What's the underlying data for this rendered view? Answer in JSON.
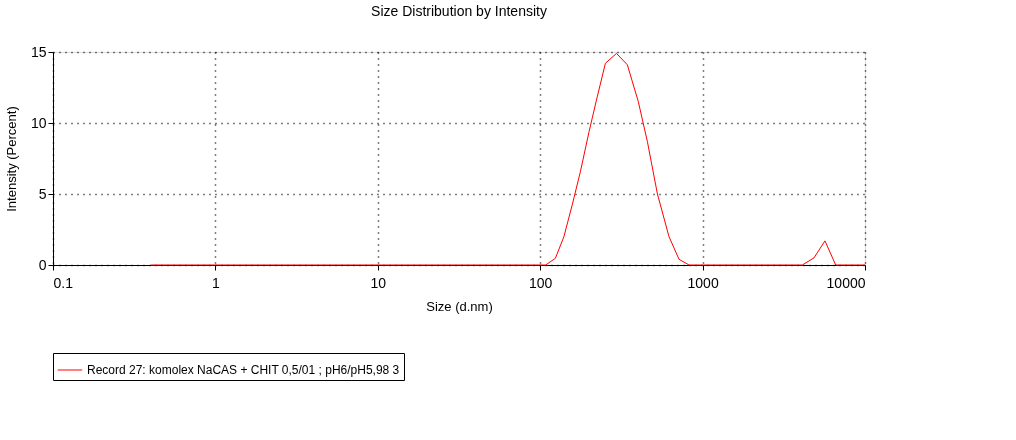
{
  "chart_data": {
    "type": "line",
    "title": "Size Distribution by Intensity",
    "xlabel": "Size (d.nm)",
    "ylabel": "Intensity (Percent)",
    "log": "x",
    "xlim": [
      0.1,
      10000
    ],
    "xticks": [
      0.1,
      1,
      10,
      100,
      1000,
      10000
    ],
    "ylim": [
      0,
      15
    ],
    "yticks": [
      0,
      5,
      10,
      15
    ],
    "grid": true,
    "legend": "bottom",
    "line_style": "solid",
    "marker": "none",
    "series": [
      {
        "name": "Record 27: komolex NaCAS + CHIT 0,5/01 ; pH6/pH5,98 3",
        "color": "#ff0000",
        "x": [
          0.4,
          108,
          124,
          140,
          158,
          177,
          200,
          224,
          252,
          295,
          344,
          402,
          457,
          527,
          621,
          716,
          825,
          4110,
          4850,
          5670,
          6600,
          10000
        ],
        "values": [
          0,
          0,
          0.47,
          2.0,
          4.3,
          6.6,
          9.4,
          11.8,
          14.2,
          14.9,
          14.1,
          11.5,
          8.7,
          5.0,
          2.0,
          0.4,
          0,
          0,
          0.5,
          1.7,
          0,
          0
        ]
      }
    ]
  }
}
